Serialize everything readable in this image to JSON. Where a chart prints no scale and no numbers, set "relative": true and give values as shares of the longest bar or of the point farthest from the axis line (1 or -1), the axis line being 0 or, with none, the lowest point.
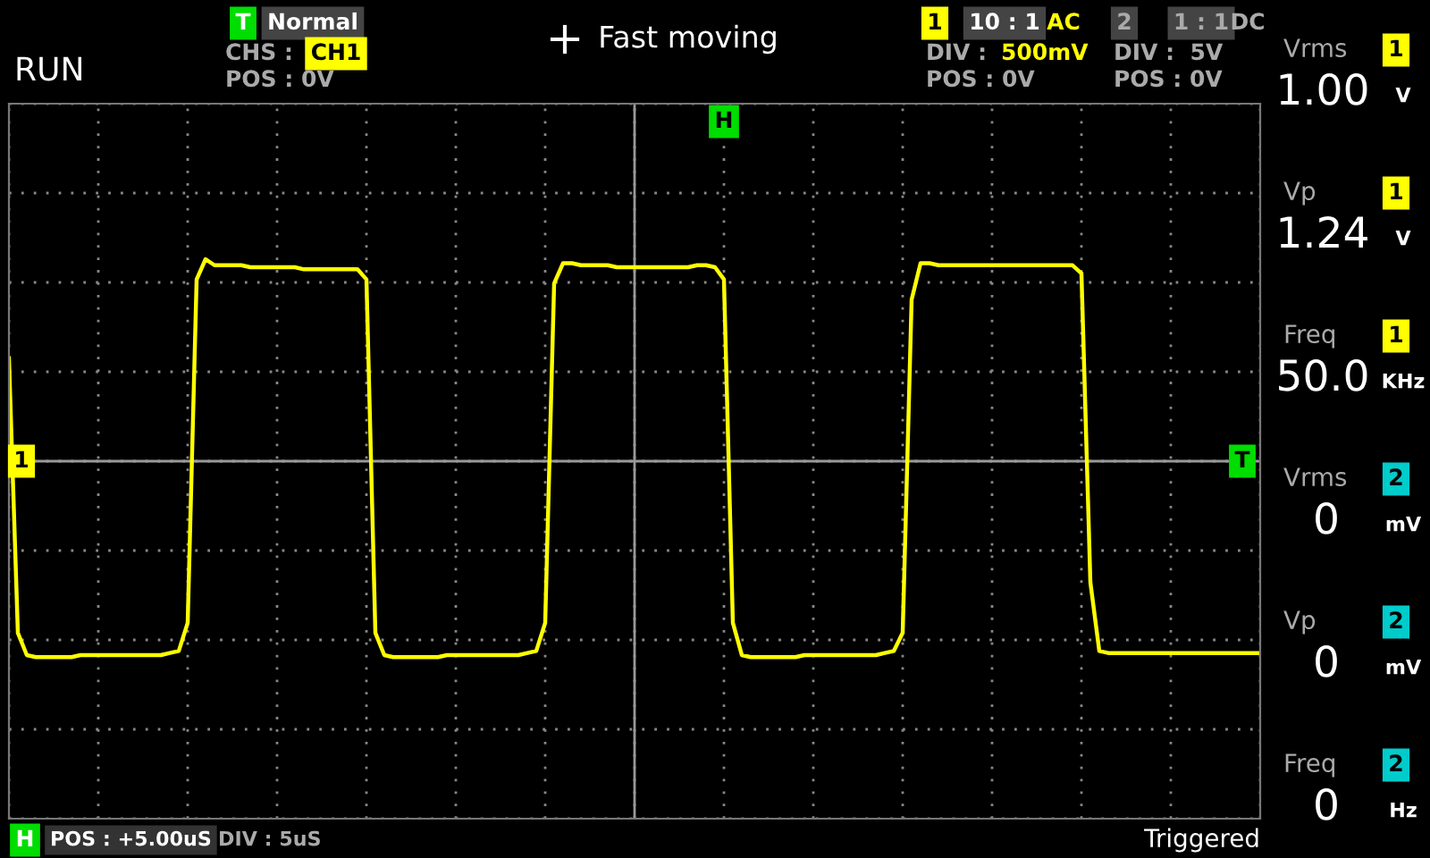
{
  "chart_data": {
    "type": "line",
    "relative": true,
    "grid": true,
    "line_style": "solid",
    "categories": [
      null,
      null,
      null,
      null,
      null,
      null,
      null,
      null,
      null,
      null,
      null,
      null,
      null,
      null,
      null,
      null,
      null,
      null,
      null,
      null,
      null,
      null,
      null,
      null,
      null,
      null,
      null,
      null,
      null,
      null,
      null,
      null,
      null,
      null,
      null,
      null,
      null,
      null,
      null,
      null,
      null,
      null,
      null,
      null,
      null,
      null,
      null,
      null,
      null,
      null,
      null,
      null,
      null,
      null,
      null,
      null,
      null,
      null,
      null,
      null,
      null,
      null,
      null,
      null,
      null,
      null,
      null,
      null,
      null,
      null,
      null,
      null,
      null,
      null,
      null,
      null,
      null,
      null,
      null,
      null,
      null,
      null,
      null,
      null,
      null,
      null,
      null,
      null,
      null,
      null,
      null,
      null,
      null,
      null,
      null,
      null,
      null,
      null,
      null,
      null,
      null,
      null,
      null,
      null,
      null,
      null,
      null,
      null,
      null,
      null,
      null,
      null,
      null,
      null,
      null,
      null,
      null,
      null,
      null,
      null,
      null,
      null,
      null,
      null,
      null,
      null,
      null,
      null,
      null,
      null,
      null,
      null,
      null,
      null,
      null,
      null,
      null,
      null,
      null,
      null,
      null
    ],
    "series": [
      {
        "color": "#ffff00",
        "values": [
          0.51,
          -0.85,
          -0.96,
          -0.97,
          -0.97,
          -0.97,
          -0.97,
          -0.97,
          -0.96,
          -0.96,
          -0.96,
          -0.96,
          -0.96,
          -0.96,
          -0.96,
          -0.96,
          -0.96,
          -0.96,
          -0.95,
          -0.94,
          -0.8,
          0.9,
          1.0,
          0.97,
          0.97,
          0.97,
          0.97,
          0.96,
          0.96,
          0.96,
          0.96,
          0.96,
          0.96,
          0.95,
          0.95,
          0.95,
          0.95,
          0.95,
          0.95,
          0.95,
          0.9,
          -0.85,
          -0.96,
          -0.97,
          -0.97,
          -0.97,
          -0.97,
          -0.97,
          -0.97,
          -0.96,
          -0.96,
          -0.96,
          -0.96,
          -0.96,
          -0.96,
          -0.96,
          -0.96,
          -0.96,
          -0.95,
          -0.94,
          -0.8,
          0.88,
          0.98,
          0.98,
          0.97,
          0.97,
          0.97,
          0.97,
          0.96,
          0.96,
          0.96,
          0.96,
          0.96,
          0.96,
          0.96,
          0.96,
          0.96,
          0.97,
          0.97,
          0.96,
          0.9,
          -0.8,
          -0.96,
          -0.97,
          -0.97,
          -0.97,
          -0.97,
          -0.97,
          -0.97,
          -0.96,
          -0.96,
          -0.96,
          -0.96,
          -0.96,
          -0.96,
          -0.96,
          -0.96,
          -0.96,
          -0.95,
          -0.94,
          -0.85,
          0.8,
          0.98,
          0.98,
          0.97,
          0.97,
          0.97,
          0.97,
          0.97,
          0.97,
          0.97,
          0.97,
          0.97,
          0.97,
          0.97,
          0.97,
          0.97,
          0.97,
          0.97,
          0.97,
          0.93,
          -0.6,
          -0.94,
          -0.95,
          -0.95,
          -0.95,
          -0.95,
          -0.95,
          -0.95,
          -0.95,
          -0.95,
          -0.95,
          -0.95,
          -0.95,
          -0.95,
          -0.95,
          -0.95,
          -0.95,
          -0.95,
          -0.95,
          -0.95
        ]
      }
    ],
    "annotations": [
      "RUN",
      "T",
      "Normal",
      "CHS :",
      "CH1",
      "POS : 0V",
      "Fast moving",
      "1",
      "10 : 1",
      "AC",
      "DIV :",
      "500mV",
      "POS : 0V",
      "2",
      "1 : 1",
      "DC",
      "DIV :  5V",
      "POS : 0V",
      "Vrms",
      "1",
      "1.00",
      "V",
      "Vp",
      "1",
      "1.24",
      "V",
      "Freq",
      "1",
      "50.0",
      "KHz",
      "Vrms",
      "2",
      "0",
      "mV",
      "Vp",
      "2",
      "0",
      "mV",
      "Freq",
      "2",
      "0",
      "Hz",
      "H",
      "POS : +5.00uS",
      "DIV : 5uS",
      "Triggered",
      "H",
      "1",
      "T"
    ]
  }
}
